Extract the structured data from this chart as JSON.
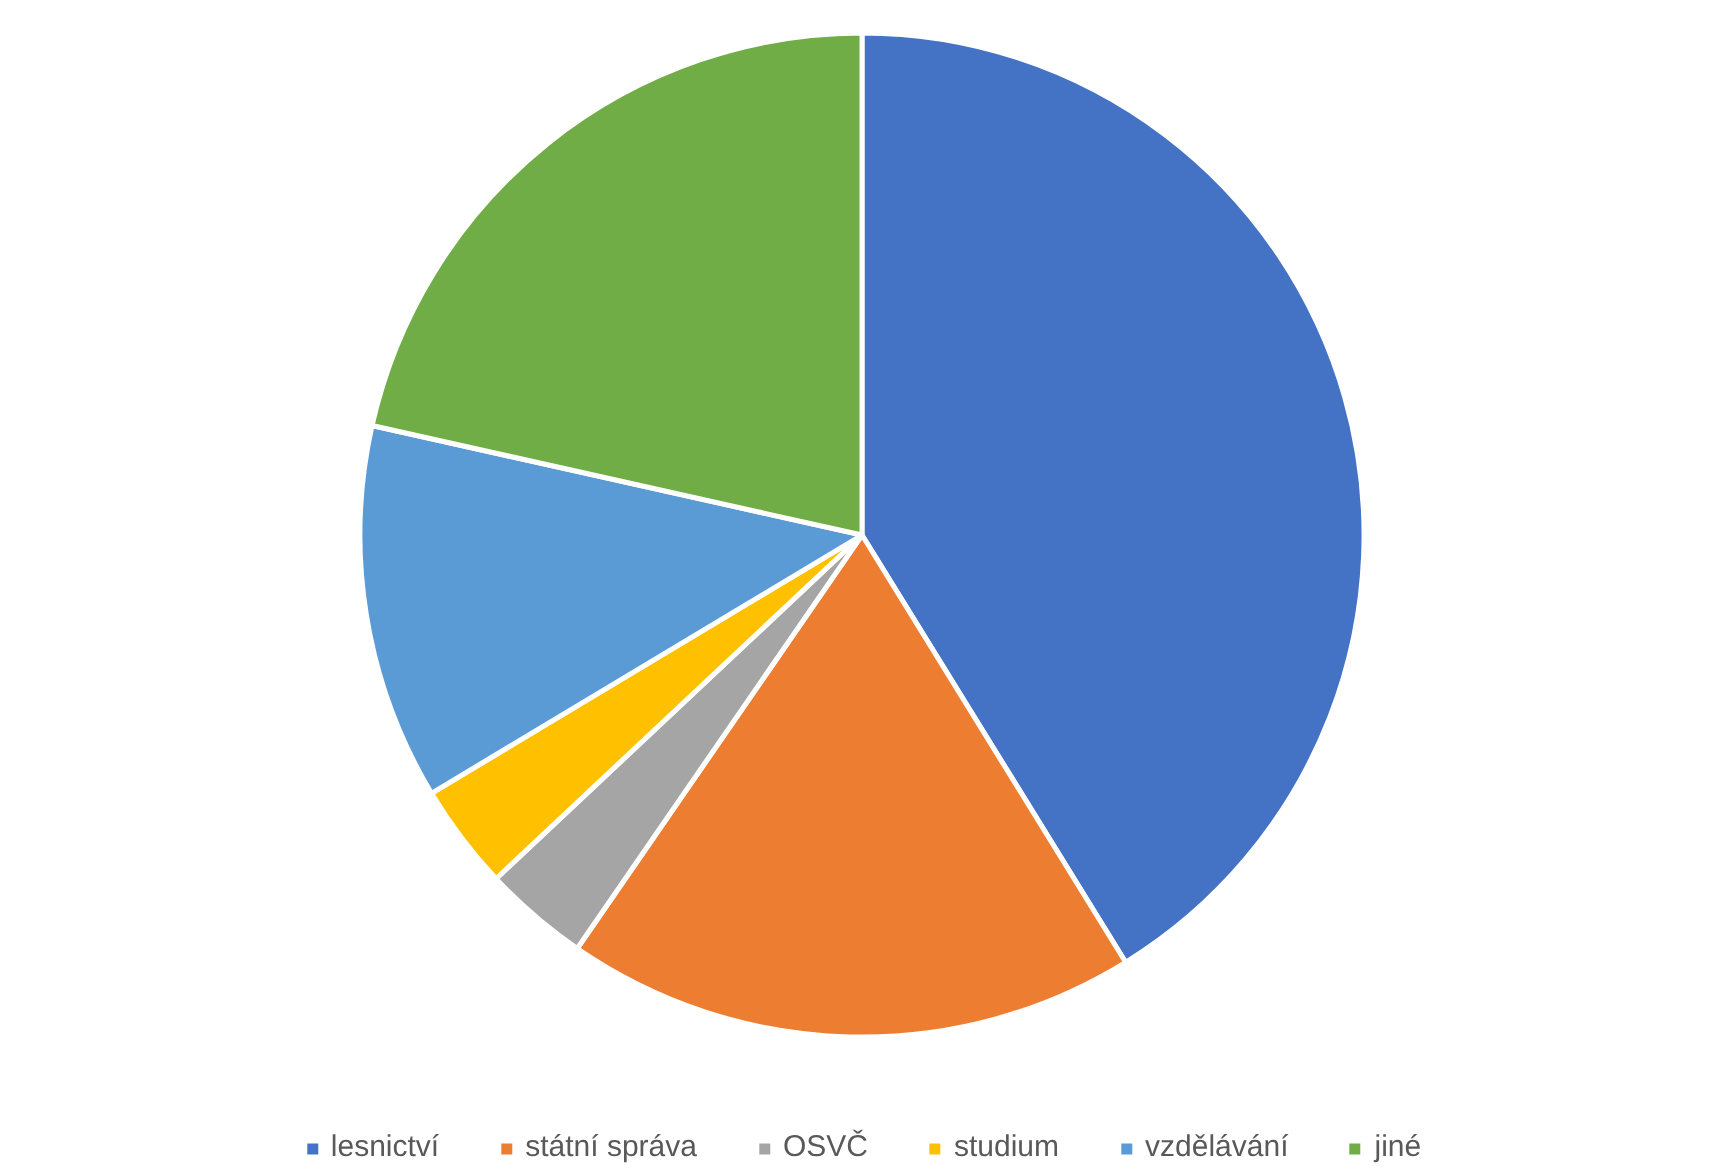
{
  "chart_data": {
    "type": "pie",
    "categories": [
      "lesnictví",
      "státní správa",
      "OSVČ",
      "studium",
      "vzdělávání",
      "jiné"
    ],
    "values": [
      41.2,
      18.4,
      3.4,
      3.4,
      12.1,
      21.5
    ],
    "colors": [
      "#4472c4",
      "#ed7d31",
      "#a5a5a5",
      "#ffc000",
      "#5b9bd5",
      "#70ad47"
    ],
    "legend": "bottom"
  }
}
